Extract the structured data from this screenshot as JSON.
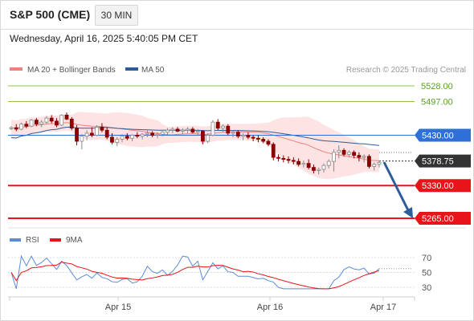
{
  "header": {
    "title": "S&P 500 (CME)",
    "timeframe": "30 MIN"
  },
  "timestamp": "Wednesday, April 16, 2025 5:40:05 PM CET",
  "legend": {
    "bollinger": "MA 20 + Bollinger Bands",
    "ma50": "MA 50",
    "credit": "Research © 2025 Trading Central"
  },
  "rsi_legend": {
    "rsi": "RSI",
    "ma": "9MA"
  },
  "colors": {
    "resistance": "#8bc34a",
    "pivot": "#2e6fd8",
    "support": "#e8141a",
    "last_price": "#333333",
    "ma50": "#2e5c99",
    "band_fill": "#fde0e0",
    "ma20": "#f08080",
    "up_candle": "#888888",
    "down_candle": "#8b0000",
    "rsi_line": "#5b8dd6",
    "rsi_ma": "#e8141a",
    "arrow": "#2e5c99"
  },
  "chart_data": {
    "type": "candlestick",
    "x_ticks": [
      "Apr 15",
      "Apr 16",
      "Apr 17"
    ],
    "y_ticks": [
      "5528.00",
      "5497.00"
    ],
    "levels": [
      {
        "label": "5528.00",
        "value": 5528.0,
        "kind": "resistance"
      },
      {
        "label": "5497.00",
        "value": 5497.0,
        "kind": "resistance"
      },
      {
        "label": "5430.00",
        "value": 5430.0,
        "kind": "pivot"
      },
      {
        "label": "5378.75",
        "value": 5378.75,
        "kind": "last"
      },
      {
        "label": "5330.00",
        "value": 5330.0,
        "kind": "support"
      },
      {
        "label": "5265.00",
        "value": 5265.0,
        "kind": "support"
      }
    ],
    "ylim": [
      5265,
      5528
    ],
    "candles": [
      [
        5443,
        5448,
        5440,
        5445
      ],
      [
        5445,
        5452,
        5438,
        5442
      ],
      [
        5442,
        5455,
        5440,
        5452
      ],
      [
        5452,
        5458,
        5444,
        5448
      ],
      [
        5448,
        5462,
        5446,
        5460
      ],
      [
        5460,
        5464,
        5448,
        5452
      ],
      [
        5452,
        5460,
        5446,
        5456
      ],
      [
        5456,
        5468,
        5452,
        5464
      ],
      [
        5464,
        5470,
        5454,
        5458
      ],
      [
        5458,
        5464,
        5446,
        5450
      ],
      [
        5450,
        5472,
        5448,
        5470
      ],
      [
        5470,
        5475,
        5460,
        5462
      ],
      [
        5462,
        5466,
        5440,
        5444
      ],
      [
        5444,
        5450,
        5410,
        5418
      ],
      [
        5418,
        5432,
        5402,
        5428
      ],
      [
        5428,
        5440,
        5420,
        5434
      ],
      [
        5434,
        5446,
        5426,
        5430
      ],
      [
        5430,
        5450,
        5428,
        5446
      ],
      [
        5446,
        5454,
        5436,
        5440
      ],
      [
        5440,
        5446,
        5422,
        5426
      ],
      [
        5426,
        5434,
        5412,
        5416
      ],
      [
        5416,
        5426,
        5408,
        5422
      ],
      [
        5422,
        5432,
        5416,
        5428
      ],
      [
        5428,
        5434,
        5420,
        5424
      ],
      [
        5424,
        5432,
        5418,
        5430
      ],
      [
        5430,
        5436,
        5424,
        5428
      ],
      [
        5428,
        5434,
        5422,
        5432
      ],
      [
        5432,
        5440,
        5426,
        5434
      ],
      [
        5434,
        5438,
        5426,
        5430
      ],
      [
        5430,
        5436,
        5424,
        5432
      ],
      [
        5432,
        5438,
        5428,
        5436
      ],
      [
        5436,
        5444,
        5430,
        5440
      ],
      [
        5440,
        5446,
        5434,
        5442
      ],
      [
        5442,
        5446,
        5436,
        5438
      ],
      [
        5438,
        5444,
        5432,
        5440
      ],
      [
        5440,
        5446,
        5434,
        5442
      ],
      [
        5442,
        5446,
        5434,
        5436
      ],
      [
        5436,
        5442,
        5430,
        5438
      ],
      [
        5438,
        5440,
        5412,
        5418
      ],
      [
        5418,
        5434,
        5414,
        5430
      ],
      [
        5430,
        5460,
        5428,
        5456
      ],
      [
        5456,
        5462,
        5440,
        5444
      ],
      [
        5444,
        5452,
        5436,
        5448
      ],
      [
        5448,
        5452,
        5430,
        5434
      ],
      [
        5434,
        5440,
        5426,
        5436
      ],
      [
        5436,
        5440,
        5424,
        5428
      ],
      [
        5428,
        5434,
        5420,
        5430
      ],
      [
        5430,
        5436,
        5422,
        5426
      ],
      [
        5426,
        5430,
        5418,
        5424
      ],
      [
        5424,
        5430,
        5416,
        5422
      ],
      [
        5422,
        5426,
        5414,
        5418
      ],
      [
        5418,
        5422,
        5408,
        5412
      ],
      [
        5412,
        5416,
        5380,
        5386
      ],
      [
        5386,
        5392,
        5378,
        5384
      ],
      [
        5384,
        5390,
        5376,
        5382
      ],
      [
        5382,
        5388,
        5374,
        5380
      ],
      [
        5380,
        5386,
        5372,
        5378
      ],
      [
        5378,
        5384,
        5368,
        5372
      ],
      [
        5372,
        5380,
        5366,
        5374
      ],
      [
        5374,
        5382,
        5362,
        5366
      ],
      [
        5366,
        5372,
        5354,
        5360
      ],
      [
        5360,
        5366,
        5352,
        5362
      ],
      [
        5362,
        5374,
        5356,
        5370
      ],
      [
        5370,
        5382,
        5364,
        5378
      ],
      [
        5378,
        5402,
        5358,
        5396
      ],
      [
        5396,
        5410,
        5384,
        5400
      ],
      [
        5400,
        5404,
        5388,
        5392
      ],
      [
        5392,
        5400,
        5386,
        5396
      ],
      [
        5396,
        5400,
        5384,
        5390
      ],
      [
        5390,
        5396,
        5378,
        5386
      ],
      [
        5386,
        5392,
        5376,
        5388
      ],
      [
        5388,
        5392,
        5364,
        5368
      ],
      [
        5368,
        5376,
        5360,
        5372
      ],
      [
        5372,
        5380,
        5366,
        5376
      ]
    ],
    "rsi_ticks": [
      "70",
      "50",
      "30"
    ],
    "rsi_lim": [
      20,
      80
    ]
  }
}
